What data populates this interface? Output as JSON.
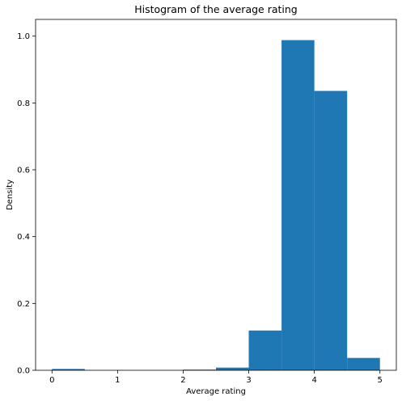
{
  "chart_data": {
    "type": "bar",
    "title": "Histogram of the average rating",
    "xlabel": "Average rating",
    "ylabel": "Density",
    "xlim": [
      -0.25,
      5.25
    ],
    "ylim": [
      0,
      1.05
    ],
    "xticks": [
      0,
      1,
      2,
      3,
      4,
      5
    ],
    "yticks": [
      0.0,
      0.2,
      0.4,
      0.6,
      0.8,
      1.0
    ],
    "xtick_labels": [
      "0",
      "1",
      "2",
      "3",
      "4",
      "5"
    ],
    "ytick_labels": [
      "0.0",
      "0.2",
      "0.4",
      "0.6",
      "0.8",
      "1.0"
    ],
    "bin_edges": [
      0,
      0.5,
      1.0,
      1.5,
      2.0,
      2.5,
      3.0,
      3.5,
      4.0,
      4.5,
      5.0
    ],
    "values": [
      0.004,
      0.0,
      0.0,
      0.0,
      0.002,
      0.008,
      0.119,
      0.988,
      0.836,
      0.037
    ],
    "bar_color": "#1f77b4",
    "grid": false,
    "legend": null
  }
}
